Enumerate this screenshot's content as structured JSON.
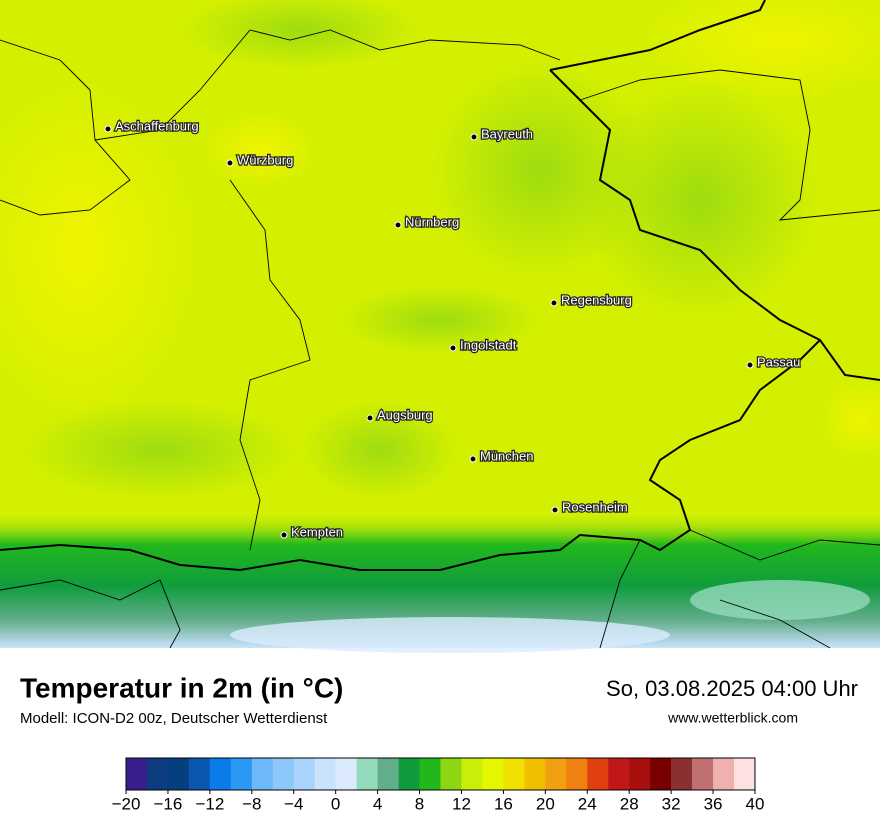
{
  "title": "Temperatur in 2m (in °C)",
  "subtitle": "Modell: ICON-D2 00z, Deutscher Wetterdienst",
  "datetime": "So, 03.08.2025 04:00 Uhr",
  "website": "www.wetterblick.com",
  "cities": [
    "Aschaffenburg",
    "Würzburg",
    "Bayreuth",
    "Nürnberg",
    "Regensburg",
    "Ingolstadt",
    "Passau",
    "Augsburg",
    "München",
    "Rosenheim",
    "Kempten"
  ],
  "colorbar": {
    "lim": [
      -20,
      40
    ],
    "colors": [
      "#3a1f8c",
      "#0d3d80",
      "#063f7e",
      "#0a56b0",
      "#0a7de8",
      "#2a98f5",
      "#6cb8f8",
      "#8ec7fa",
      "#aad4fb",
      "#c9e3fc",
      "#dbebfd",
      "#93d9bb",
      "#62ad8c",
      "#109c3c",
      "#22b81c",
      "#8fd612",
      "#c8ef0a",
      "#e5f700",
      "#f2e000",
      "#f0c000",
      "#f0a010",
      "#f08010",
      "#e04010",
      "#c01818",
      "#a81010",
      "#780000",
      "#8a3030",
      "#c07070",
      "#f0b0b0",
      "#fde0e0"
    ],
    "ticks": [
      {
        "value": -20,
        "label": "−20"
      },
      {
        "value": -16,
        "label": "−16"
      },
      {
        "value": -12,
        "label": "−12"
      },
      {
        "value": -8,
        "label": "−8"
      },
      {
        "value": -4,
        "label": "−4"
      },
      0,
      4,
      8,
      12,
      16,
      20,
      24,
      28,
      32,
      36,
      40
    ]
  }
}
